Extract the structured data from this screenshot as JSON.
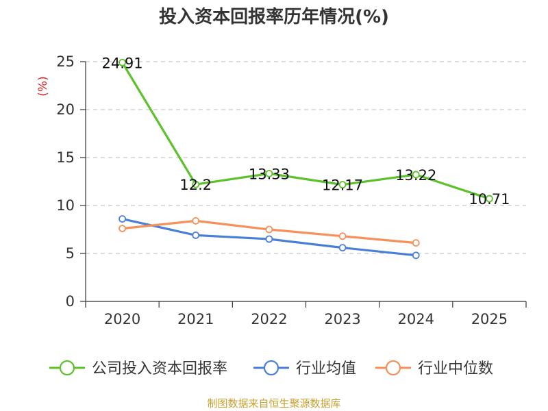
{
  "title": "投入资本回报率历年情况(%)",
  "source": "制图数据来自恒生聚源数据库",
  "chart_data": {
    "type": "line",
    "title": "投入资本回报率历年情况(%)",
    "ylabel": "(%)",
    "xlabel": "",
    "categories": [
      "2020",
      "2021",
      "2022",
      "2023",
      "2024",
      "2025"
    ],
    "ylim": [
      0,
      25
    ],
    "yticks": [
      0,
      5,
      10,
      15,
      20,
      25
    ],
    "grid": true,
    "legend_position": "bottom",
    "series": [
      {
        "name": "公司投入资本回报率",
        "color": "#5cc12a",
        "values": [
          24.91,
          12.2,
          13.33,
          12.17,
          13.22,
          10.71
        ],
        "labels": [
          "24.91",
          "12.2",
          "13.33",
          "12.17",
          "13.22",
          "10.71"
        ]
      },
      {
        "name": "行业均值",
        "color": "#4a7fd8",
        "values": [
          8.6,
          6.9,
          6.5,
          5.6,
          4.8,
          null
        ]
      },
      {
        "name": "行业中位数",
        "color": "#f5905a",
        "values": [
          7.6,
          8.4,
          7.5,
          6.8,
          6.1,
          null
        ]
      }
    ]
  }
}
